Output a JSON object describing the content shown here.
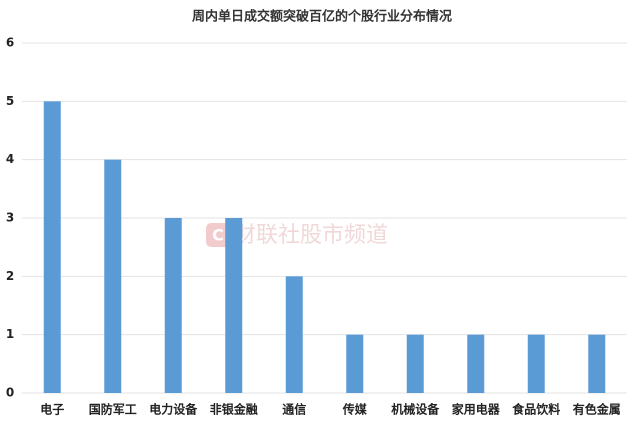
{
  "chart_data": {
    "type": "bar",
    "title": "周内单日成交额突破百亿的个股行业分布情况",
    "categories": [
      "电子",
      "国防军工",
      "电力设备",
      "非银金融",
      "通信",
      "传媒",
      "机械设备",
      "家用电器",
      "食品饮料",
      "有色金属"
    ],
    "values": [
      5,
      4,
      3,
      3,
      2,
      1,
      1,
      1,
      1,
      1
    ],
    "color": "#5b9bd5",
    "ylim": [
      0,
      6
    ],
    "yticks": [
      0,
      1,
      2,
      3,
      4,
      5,
      6
    ],
    "grid": true,
    "watermark": "财联社股市频道"
  }
}
